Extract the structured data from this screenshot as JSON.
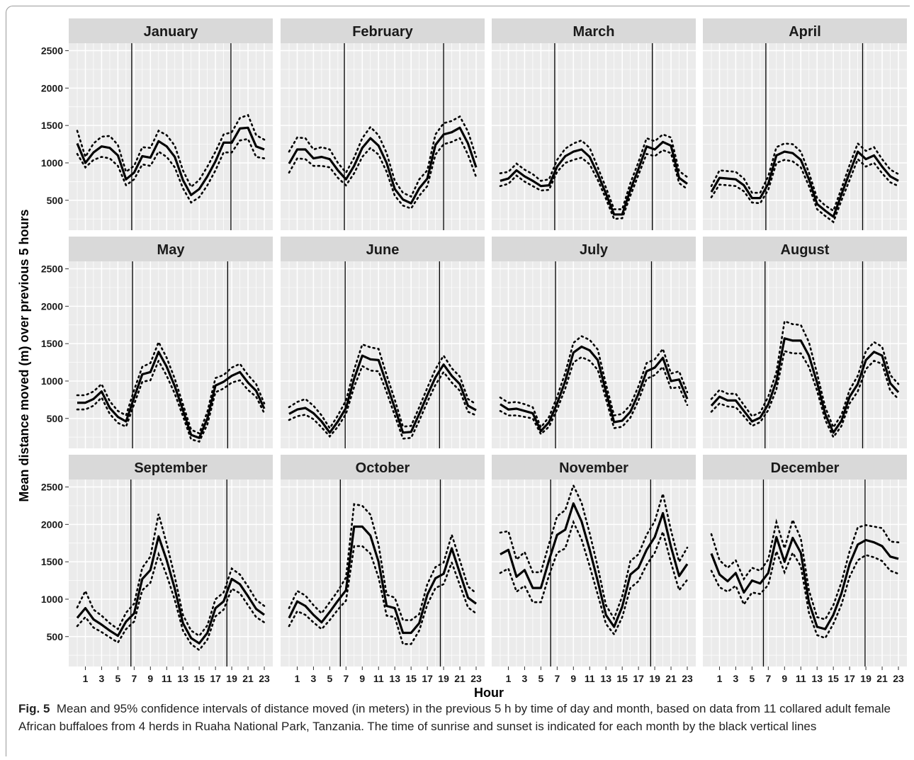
{
  "figure": {
    "ylabel": "Mean distance moved (m) over previous 5 hours",
    "xlabel": "Hour",
    "caption_label": "Fig. 5",
    "caption_text": "Mean and 95% confidence intervals of distance moved (in meters) in the previous 5 h by time of day and month, based on data from 11 collared adult female African buffaloes from 4 herds in Ruaha National Park, Tanzania. The time of sunrise and sunset is indicated for each month by the black vertical lines"
  },
  "colors": {
    "panel_bg": "#ebebeb",
    "strip_bg": "#d9d9d9",
    "grid": "#ffffff",
    "line": "#000000"
  },
  "chart_data": {
    "type": "line",
    "facet_by": "month",
    "x_ticks": [
      1,
      3,
      5,
      7,
      9,
      11,
      13,
      15,
      17,
      19,
      21,
      23
    ],
    "y_ticks": [
      500,
      1000,
      1500,
      2000,
      2500
    ],
    "xlim": [
      0,
      23
    ],
    "ylim": [
      100,
      2600
    ],
    "panels": [
      {
        "title": "January",
        "sunrise": 6.7,
        "sunset": 18.9,
        "mean": [
          1260,
          1000,
          1140,
          1220,
          1200,
          1100,
          780,
          870,
          1090,
          1070,
          1290,
          1220,
          1080,
          770,
          570,
          650,
          820,
          1020,
          1270,
          1270,
          1460,
          1470,
          1220,
          1180
        ],
        "lower": [
          1120,
          940,
          1040,
          1080,
          1060,
          960,
          700,
          780,
          980,
          960,
          1150,
          1080,
          940,
          660,
          470,
          540,
          700,
          900,
          1140,
          1140,
          1300,
          1320,
          1080,
          1060
        ],
        "upper": [
          1430,
          1080,
          1260,
          1350,
          1360,
          1240,
          880,
          960,
          1210,
          1200,
          1430,
          1370,
          1230,
          900,
          680,
          770,
          950,
          1150,
          1380,
          1410,
          1600,
          1640,
          1370,
          1310
        ]
      },
      {
        "title": "February",
        "sunrise": 6.8,
        "sunset": 19.0,
        "mean": [
          990,
          1180,
          1180,
          1060,
          1080,
          1050,
          900,
          780,
          960,
          1200,
          1330,
          1230,
          1000,
          650,
          510,
          460,
          660,
          790,
          1240,
          1380,
          1410,
          1470,
          1260,
          940
        ],
        "lower": [
          870,
          1060,
          1050,
          960,
          960,
          940,
          800,
          700,
          860,
          1080,
          1200,
          1110,
          880,
          560,
          430,
          390,
          560,
          690,
          1110,
          1250,
          1280,
          1330,
          1110,
          810
        ],
        "upper": [
          1150,
          1340,
          1330,
          1180,
          1210,
          1180,
          1000,
          870,
          1070,
          1330,
          1480,
          1370,
          1130,
          760,
          600,
          550,
          780,
          900,
          1380,
          1530,
          1560,
          1620,
          1420,
          1080
        ]
      },
      {
        "title": "March",
        "sunrise": 6.7,
        "sunset": 18.7,
        "mean": [
          760,
          790,
          900,
          820,
          760,
          690,
          700,
          950,
          1090,
          1150,
          1180,
          1080,
          850,
          590,
          310,
          310,
          640,
          920,
          1220,
          1180,
          1280,
          1230,
          800,
          720
        ],
        "lower": [
          690,
          720,
          830,
          750,
          690,
          630,
          640,
          880,
          1000,
          1040,
          1070,
          980,
          770,
          520,
          250,
          260,
          560,
          840,
          1120,
          1090,
          1170,
          1130,
          730,
          650
        ],
        "upper": [
          860,
          880,
          990,
          910,
          850,
          760,
          780,
          1040,
          1190,
          1260,
          1300,
          1200,
          940,
          670,
          380,
          380,
          730,
          1010,
          1330,
          1290,
          1380,
          1340,
          890,
          810
        ]
      },
      {
        "title": "April",
        "sunrise": 6.7,
        "sunset": 18.6,
        "mean": [
          610,
          800,
          790,
          780,
          700,
          530,
          530,
          720,
          1100,
          1150,
          1130,
          1040,
          780,
          450,
          360,
          280,
          580,
          870,
          1150,
          1050,
          1100,
          950,
          820,
          760
        ],
        "lower": [
          540,
          710,
          700,
          690,
          620,
          470,
          460,
          640,
          1000,
          1040,
          1020,
          940,
          690,
          380,
          290,
          210,
          500,
          770,
          1050,
          950,
          1000,
          860,
          740,
          690
        ],
        "upper": [
          690,
          900,
          890,
          880,
          790,
          600,
          600,
          820,
          1210,
          1260,
          1250,
          1150,
          870,
          530,
          430,
          360,
          660,
          970,
          1260,
          1160,
          1210,
          1050,
          910,
          850
        ]
      },
      {
        "title": "May",
        "sunrise": 6.8,
        "sunset": 18.5,
        "mean": [
          710,
          710,
          760,
          860,
          640,
          520,
          460,
          780,
          1090,
          1120,
          1390,
          1190,
          930,
          610,
          280,
          240,
          500,
          940,
          990,
          1070,
          1120,
          980,
          870,
          630
        ],
        "lower": [
          620,
          620,
          670,
          780,
          560,
          440,
          390,
          690,
          990,
          1010,
          1270,
          1070,
          830,
          530,
          220,
          190,
          420,
          850,
          900,
          980,
          1010,
          880,
          790,
          570
        ],
        "upper": [
          810,
          810,
          860,
          960,
          730,
          600,
          540,
          880,
          1190,
          1240,
          1520,
          1310,
          1030,
          690,
          350,
          300,
          590,
          1040,
          1080,
          1180,
          1230,
          1080,
          960,
          700
        ]
      },
      {
        "title": "June",
        "sunrise": 6.9,
        "sunset": 18.5,
        "mean": [
          560,
          620,
          640,
          570,
          460,
          310,
          460,
          640,
          1030,
          1340,
          1290,
          1280,
          960,
          640,
          310,
          320,
          560,
          810,
          1050,
          1220,
          1070,
          960,
          670,
          610
        ],
        "lower": [
          480,
          530,
          550,
          490,
          380,
          260,
          390,
          560,
          920,
          1200,
          1140,
          1130,
          850,
          540,
          230,
          240,
          470,
          720,
          950,
          1120,
          980,
          870,
          590,
          540
        ],
        "upper": [
          650,
          720,
          760,
          670,
          540,
          370,
          540,
          740,
          1150,
          1490,
          1450,
          1430,
          1080,
          750,
          390,
          400,
          650,
          910,
          1160,
          1340,
          1170,
          1060,
          760,
          690
        ]
      },
      {
        "title": "July",
        "sunrise": 6.8,
        "sunset": 18.6,
        "mean": [
          690,
          620,
          630,
          600,
          570,
          330,
          450,
          700,
          1000,
          1380,
          1460,
          1410,
          1280,
          860,
          450,
          470,
          590,
          830,
          1130,
          1180,
          1310,
          1000,
          1020,
          760
        ],
        "lower": [
          600,
          540,
          540,
          520,
          500,
          290,
          390,
          620,
          900,
          1250,
          1320,
          1270,
          1150,
          760,
          370,
          390,
          510,
          740,
          1030,
          1080,
          1190,
          900,
          920,
          680
        ],
        "upper": [
          780,
          710,
          720,
          690,
          650,
          380,
          520,
          790,
          1110,
          1510,
          1600,
          1550,
          1420,
          960,
          540,
          560,
          680,
          930,
          1240,
          1290,
          1430,
          1100,
          1130,
          850
        ]
      },
      {
        "title": "August",
        "sunrise": 6.6,
        "sunset": 18.6,
        "mean": [
          670,
          790,
          740,
          740,
          600,
          460,
          510,
          690,
          1000,
          1570,
          1540,
          1540,
          1340,
          980,
          560,
          310,
          470,
          790,
          960,
          1280,
          1390,
          1340,
          970,
          850
        ],
        "lower": [
          590,
          700,
          660,
          650,
          530,
          400,
          450,
          610,
          890,
          1400,
          1370,
          1370,
          1190,
          870,
          480,
          250,
          400,
          700,
          860,
          1160,
          1270,
          1230,
          870,
          760
        ],
        "upper": [
          760,
          880,
          830,
          830,
          680,
          530,
          580,
          790,
          1120,
          1800,
          1760,
          1750,
          1520,
          1100,
          650,
          380,
          550,
          880,
          1070,
          1400,
          1520,
          1460,
          1080,
          960
        ]
      },
      {
        "title": "September",
        "sunrise": 6.6,
        "sunset": 18.4,
        "mean": [
          750,
          880,
          730,
          660,
          580,
          510,
          700,
          810,
          1270,
          1390,
          1840,
          1520,
          1140,
          680,
          480,
          410,
          550,
          880,
          970,
          1270,
          1200,
          1040,
          870,
          790
        ],
        "lower": [
          640,
          760,
          620,
          560,
          490,
          420,
          600,
          700,
          1120,
          1220,
          1600,
          1320,
          990,
          580,
          400,
          320,
          460,
          770,
          860,
          1140,
          1080,
          920,
          760,
          690
        ],
        "upper": [
          890,
          1110,
          860,
          780,
          680,
          600,
          820,
          940,
          1420,
          1570,
          2140,
          1740,
          1300,
          790,
          580,
          510,
          650,
          1000,
          1090,
          1410,
          1330,
          1170,
          990,
          910
        ]
      },
      {
        "title": "October",
        "sunrise": 6.3,
        "sunset": 18.6,
        "mean": [
          750,
          970,
          910,
          790,
          690,
          830,
          980,
          1120,
          1970,
          1970,
          1850,
          1500,
          910,
          880,
          550,
          550,
          680,
          1060,
          1280,
          1340,
          1680,
          1350,
          1020,
          940
        ],
        "lower": [
          640,
          840,
          790,
          690,
          600,
          720,
          860,
          980,
          1710,
          1710,
          1610,
          1290,
          780,
          760,
          400,
          400,
          580,
          930,
          1150,
          1200,
          1490,
          1190,
          890,
          810
        ],
        "upper": [
          880,
          1110,
          1050,
          920,
          810,
          960,
          1110,
          1290,
          2270,
          2250,
          2130,
          1730,
          1060,
          1020,
          720,
          720,
          800,
          1200,
          1430,
          1490,
          1860,
          1520,
          1170,
          1080
        ]
      },
      {
        "title": "November",
        "sunrise": 6.2,
        "sunset": 18.5,
        "mean": [
          1600,
          1660,
          1300,
          1390,
          1150,
          1150,
          1520,
          1860,
          1930,
          2280,
          2040,
          1660,
          1240,
          790,
          630,
          900,
          1330,
          1420,
          1660,
          1830,
          2150,
          1700,
          1310,
          1470
        ],
        "lower": [
          1350,
          1410,
          1100,
          1180,
          960,
          960,
          1320,
          1620,
          1680,
          2030,
          1800,
          1440,
          1060,
          670,
          530,
          760,
          1150,
          1240,
          1460,
          1620,
          1900,
          1490,
          1120,
          1260
        ],
        "upper": [
          1890,
          1910,
          1530,
          1630,
          1360,
          1360,
          1740,
          2110,
          2190,
          2520,
          2290,
          1880,
          1430,
          920,
          740,
          1040,
          1510,
          1600,
          1860,
          2040,
          2410,
          1920,
          1500,
          1690
        ]
      },
      {
        "title": "December",
        "sunrise": 6.4,
        "sunset": 18.9,
        "mean": [
          1610,
          1330,
          1240,
          1350,
          1090,
          1250,
          1210,
          1350,
          1830,
          1500,
          1820,
          1620,
          960,
          630,
          600,
          790,
          1080,
          1470,
          1730,
          1790,
          1760,
          1710,
          1570,
          1540
        ],
        "lower": [
          1380,
          1160,
          1100,
          1180,
          930,
          1090,
          1070,
          1190,
          1640,
          1360,
          1620,
          1440,
          820,
          520,
          480,
          670,
          930,
          1300,
          1520,
          1590,
          1560,
          1510,
          1380,
          1340
        ],
        "upper": [
          1870,
          1520,
          1420,
          1520,
          1270,
          1420,
          1380,
          1530,
          2030,
          1680,
          2060,
          1810,
          1120,
          760,
          730,
          920,
          1230,
          1640,
          1960,
          1990,
          1970,
          1950,
          1770,
          1760
        ]
      }
    ]
  }
}
